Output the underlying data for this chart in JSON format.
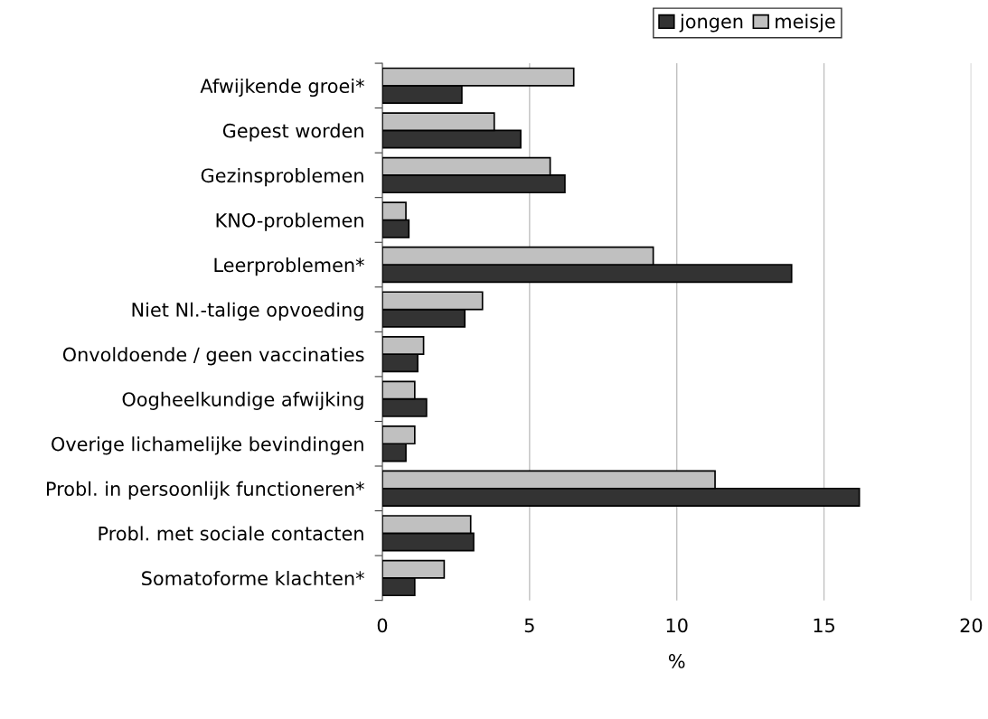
{
  "chart_data": {
    "type": "bar",
    "orientation": "horizontal",
    "xlabel": "%",
    "categories": [
      "Afwijkende groei*",
      "Gepest worden",
      "Gezinsproblemen",
      "KNO-problemen",
      "Leerproblemen*",
      "Niet Nl.-talige opvoeding",
      "Onvoldoende / geen vaccinaties",
      "Oogheelkundige afwijking",
      "Overige lichamelijke bevindingen",
      "Probl. in persoonlijk functioneren*",
      "Probl. met sociale contacten",
      "Somatoforme klachten*"
    ],
    "series": [
      {
        "name": "jongen",
        "color": "#333333",
        "values": [
          2.7,
          4.7,
          6.2,
          0.9,
          13.9,
          2.8,
          1.2,
          1.5,
          0.8,
          16.2,
          3.1,
          1.1
        ]
      },
      {
        "name": "meisje",
        "color": "#c0c0c0",
        "values": [
          6.5,
          3.8,
          5.7,
          0.8,
          9.2,
          3.4,
          1.4,
          1.1,
          1.1,
          11.3,
          3.0,
          2.1
        ]
      }
    ],
    "xlim": [
      0,
      20
    ],
    "xticks": [
      0,
      5,
      10,
      15,
      20
    ],
    "grid": "x",
    "legend": "top"
  }
}
